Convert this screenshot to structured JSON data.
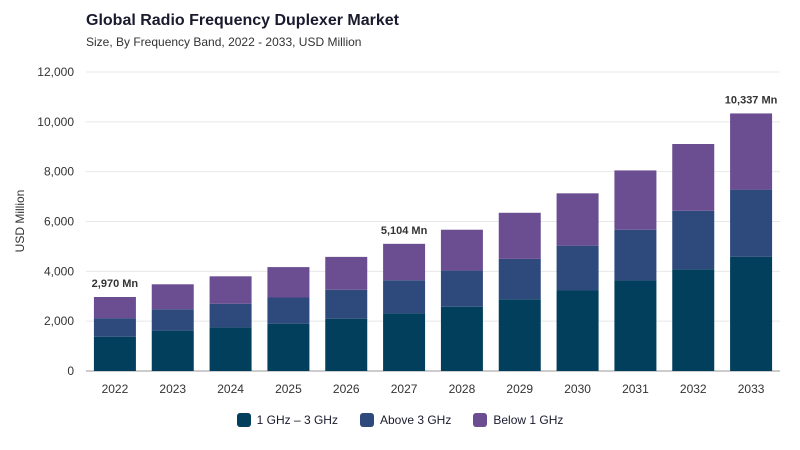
{
  "header": {
    "title": "Global Radio Frequency Duplexer Market",
    "subtitle": "Size, By Frequency Band, 2022 - 2033, USD Million"
  },
  "chart_data": {
    "type": "bar",
    "stacked": true,
    "categories": [
      "2022",
      "2023",
      "2024",
      "2025",
      "2026",
      "2027",
      "2028",
      "2029",
      "2030",
      "2031",
      "2032",
      "2033"
    ],
    "series": [
      {
        "name": "1 GHz – 3 GHz",
        "color": "#023f5c",
        "values": [
          1370,
          1620,
          1750,
          1900,
          2100,
          2320,
          2580,
          2880,
          3230,
          3630,
          4080,
          4580
        ]
      },
      {
        "name": "Above 3 GHz",
        "color": "#2e4a7d",
        "values": [
          750,
          860,
          950,
          1050,
          1160,
          1320,
          1450,
          1620,
          1800,
          2040,
          2350,
          2700
        ]
      },
      {
        "name": "Below 1 GHz",
        "color": "#6a4e91",
        "values": [
          850,
          1000,
          1100,
          1220,
          1320,
          1464,
          1640,
          1850,
          2100,
          2380,
          2680,
          3057
        ]
      }
    ],
    "annotations": [
      {
        "category": "2022",
        "text": "2,970 Mn"
      },
      {
        "category": "2027",
        "text": "5,104 Mn"
      },
      {
        "category": "2033",
        "text": "10,337 Mn"
      }
    ],
    "ylabel": "USD Million",
    "ylim": [
      0,
      12000
    ],
    "yticks": [
      0,
      2000,
      4000,
      6000,
      8000,
      10000,
      12000
    ],
    "ytick_labels": [
      "0",
      "2,000",
      "4,000",
      "6,000",
      "8,000",
      "10,000",
      "12,000"
    ],
    "grid": true,
    "legend_position": "bottom-center"
  }
}
